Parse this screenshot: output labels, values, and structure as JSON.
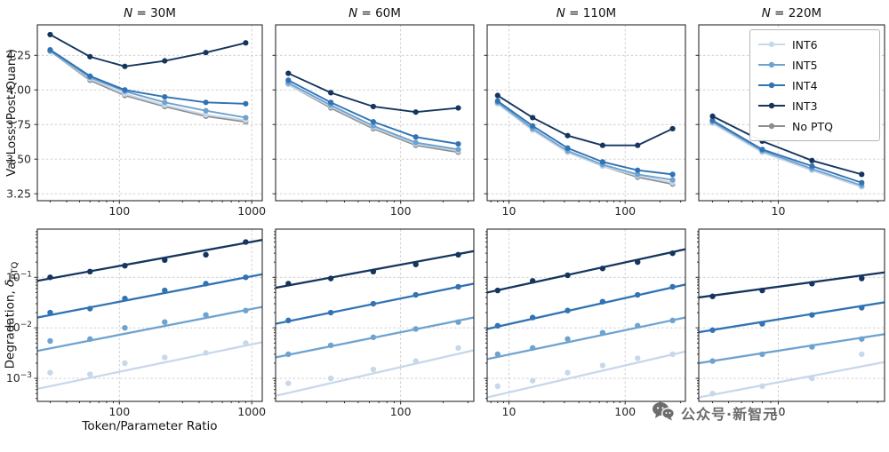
{
  "watermark": {
    "text": "公众号·新智元",
    "icon": "wechat-bubbles-icon"
  },
  "chart_data": {
    "type": "line",
    "xlabel": "Token/Parameter Ratio",
    "top_ylabel": "Val Loss (Post-Quant)",
    "bottom_ylabel_main": "Degradation, ",
    "bottom_ylabel_var": "δ",
    "bottom_ylabel_sub": "PTQ",
    "legend": [
      "INT6",
      "INT5",
      "INT4",
      "INT3",
      "No PTQ"
    ],
    "legend_position": "top-right panel inset",
    "grid": true,
    "colors": {
      "INT6": "#c7d8ea",
      "INT5": "#6fa3cf",
      "INT4": "#3173b3",
      "INT3": "#15355e",
      "No PTQ": "#8e8e8e"
    },
    "top_ylim": [
      3.2,
      4.47
    ],
    "top_yticks": [
      3.25,
      3.5,
      3.75,
      4.0,
      4.25
    ],
    "bottom_ylim": [
      0.00035,
      0.9
    ],
    "bottom_ytick_exponents": [
      -1,
      -2,
      -3
    ],
    "columns": [
      {
        "title_var": "N",
        "title_rest": " = 30M",
        "x": [
          30,
          60,
          110,
          220,
          450,
          900
        ],
        "xlim": [
          24,
          1200
        ],
        "xticks": [
          100,
          1000
        ],
        "val_loss": {
          "No PTQ": [
            4.28,
            4.07,
            3.96,
            3.88,
            3.81,
            3.77
          ],
          "INT6": [
            4.28,
            4.08,
            3.97,
            3.89,
            3.82,
            3.78
          ],
          "INT5": [
            4.28,
            4.09,
            3.99,
            3.91,
            3.85,
            3.8
          ],
          "INT4": [
            4.29,
            4.1,
            4.0,
            3.95,
            3.91,
            3.9
          ],
          "INT3": [
            4.4,
            4.24,
            4.17,
            4.21,
            4.27,
            4.34
          ]
        },
        "degradation": {
          "INT6": {
            "points": [
              0.0013,
              0.0012,
              0.002,
              0.0026,
              0.0032,
              0.005
            ],
            "fit": [
              0.00062,
              0.0052
            ]
          },
          "INT5": {
            "points": [
              0.0055,
              0.006,
              0.01,
              0.013,
              0.018,
              0.022
            ],
            "fit": [
              0.0035,
              0.026
            ]
          },
          "INT4": {
            "points": [
              0.02,
              0.024,
              0.038,
              0.055,
              0.075,
              0.1
            ],
            "fit": [
              0.016,
              0.115
            ]
          },
          "INT3": {
            "points": [
              0.1,
              0.13,
              0.17,
              0.22,
              0.28,
              0.5
            ],
            "fit": [
              0.085,
              0.55
            ]
          }
        }
      },
      {
        "title_var": "N",
        "title_rest": " = 60M",
        "x": [
          16,
          32,
          64,
          128,
          256
        ],
        "xlim": [
          13,
          330
        ],
        "xticks": [
          100
        ],
        "val_loss": {
          "No PTQ": [
            4.04,
            3.87,
            3.72,
            3.6,
            3.55
          ],
          "INT6": [
            4.04,
            3.88,
            3.73,
            3.61,
            3.56
          ],
          "INT5": [
            4.05,
            3.89,
            3.74,
            3.62,
            3.57
          ],
          "INT4": [
            4.07,
            3.91,
            3.77,
            3.66,
            3.61
          ],
          "INT3": [
            4.12,
            3.98,
            3.88,
            3.84,
            3.87
          ]
        },
        "degradation": {
          "INT6": {
            "points": [
              0.0008,
              0.001,
              0.0015,
              0.0022,
              0.004
            ],
            "fit": [
              0.00045,
              0.0036
            ]
          },
          "INT5": {
            "points": [
              0.003,
              0.0045,
              0.0065,
              0.0095,
              0.013
            ],
            "fit": [
              0.0026,
              0.016
            ]
          },
          "INT4": {
            "points": [
              0.014,
              0.02,
              0.03,
              0.045,
              0.065
            ],
            "fit": [
              0.012,
              0.075
            ]
          },
          "INT3": {
            "points": [
              0.075,
              0.095,
              0.13,
              0.18,
              0.28
            ],
            "fit": [
              0.062,
              0.33
            ]
          }
        }
      },
      {
        "title_var": "N",
        "title_rest": " = 110M",
        "x": [
          8,
          16,
          32,
          64,
          128,
          256
        ],
        "xlim": [
          6.5,
          330
        ],
        "xticks": [
          10,
          100
        ],
        "val_loss": {
          "No PTQ": [
            3.9,
            3.71,
            3.55,
            3.45,
            3.37,
            3.32
          ],
          "INT6": [
            3.9,
            3.71,
            3.55,
            3.45,
            3.38,
            3.33
          ],
          "INT5": [
            3.91,
            3.72,
            3.56,
            3.46,
            3.39,
            3.35
          ],
          "INT4": [
            3.92,
            3.74,
            3.58,
            3.48,
            3.42,
            3.39
          ],
          "INT3": [
            3.96,
            3.8,
            3.67,
            3.6,
            3.6,
            3.72
          ]
        },
        "degradation": {
          "INT6": {
            "points": [
              0.0007,
              0.0009,
              0.0013,
              0.0018,
              0.0025,
              0.003
            ],
            "fit": [
              0.00042,
              0.0034
            ]
          },
          "INT5": {
            "points": [
              0.003,
              0.004,
              0.006,
              0.008,
              0.011,
              0.014
            ],
            "fit": [
              0.0024,
              0.016
            ]
          },
          "INT4": {
            "points": [
              0.011,
              0.016,
              0.022,
              0.033,
              0.045,
              0.065
            ],
            "fit": [
              0.0095,
              0.072
            ]
          },
          "INT3": {
            "points": [
              0.055,
              0.085,
              0.11,
              0.15,
              0.2,
              0.3
            ],
            "fit": [
              0.05,
              0.36
            ]
          }
        }
      },
      {
        "title_var": "N",
        "title_rest": " = 220M",
        "x": [
          4,
          8,
          16,
          32
        ],
        "xlim": [
          3.3,
          44
        ],
        "xticks": [
          10
        ],
        "val_loss": {
          "No PTQ": [
            3.76,
            3.55,
            3.42,
            3.3
          ],
          "INT6": [
            3.76,
            3.55,
            3.42,
            3.3
          ],
          "INT5": [
            3.77,
            3.56,
            3.43,
            3.31
          ],
          "INT4": [
            3.78,
            3.57,
            3.45,
            3.33
          ],
          "INT3": [
            3.81,
            3.63,
            3.49,
            3.39
          ]
        },
        "degradation": {
          "INT6": {
            "points": [
              0.0005,
              0.0007,
              0.001,
              0.003
            ],
            "fit": [
              0.00042,
              0.0021
            ]
          },
          "INT5": {
            "points": [
              0.0022,
              0.003,
              0.0042,
              0.006
            ],
            "fit": [
              0.002,
              0.0075
            ]
          },
          "INT4": {
            "points": [
              0.009,
              0.012,
              0.018,
              0.025
            ],
            "fit": [
              0.0082,
              0.032
            ]
          },
          "INT3": {
            "points": [
              0.042,
              0.055,
              0.075,
              0.095
            ],
            "fit": [
              0.04,
              0.125
            ]
          }
        }
      }
    ]
  }
}
